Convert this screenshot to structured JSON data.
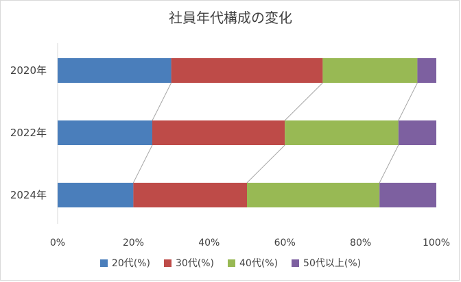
{
  "chart_data": {
    "type": "bar",
    "orientation": "horizontal",
    "stacked": "percent",
    "title": "社員年代構成の変化",
    "categories": [
      "2020年",
      "2022年",
      "2024年"
    ],
    "series": [
      {
        "name": "20代(%)",
        "color": "#4a7ebb",
        "values": [
          30,
          25,
          20
        ]
      },
      {
        "name": "30代(%)",
        "color": "#be4b48",
        "values": [
          40,
          35,
          30
        ]
      },
      {
        "name": "40代(%)",
        "color": "#98b954",
        "values": [
          25,
          30,
          35
        ]
      },
      {
        "name": "50代以上(%)",
        "color": "#7d60a0",
        "values": [
          5,
          10,
          15
        ]
      }
    ],
    "xlim": [
      0,
      100
    ],
    "xticks": [
      "0%",
      "20%",
      "40%",
      "60%",
      "80%",
      "100%"
    ],
    "series_lines": true,
    "grid": false,
    "legend_position": "bottom"
  }
}
